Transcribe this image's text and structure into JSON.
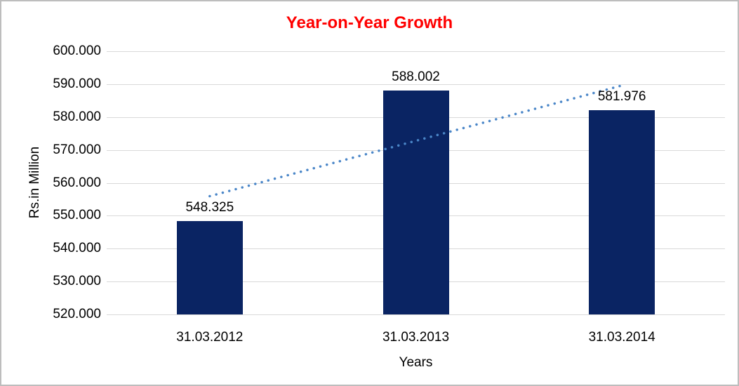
{
  "chart_data": {
    "type": "bar",
    "title": "Year-on-Year Growth",
    "title_color": "#FF0000",
    "xlabel": "Years",
    "ylabel": "Rs.in Million",
    "categories": [
      "31.03.2012",
      "31.03.2013",
      "31.03.2014"
    ],
    "values": [
      548.325,
      588.002,
      581.976
    ],
    "data_labels": [
      "548.325",
      "588.002",
      "581.976"
    ],
    "ylim": [
      520,
      600
    ],
    "ytick_step": 10,
    "ytick_labels": [
      "520.000",
      "530.000",
      "540.000",
      "550.000",
      "560.000",
      "570.000",
      "580.000",
      "590.000",
      "600.000"
    ],
    "grid": "horizontal",
    "gridline_color": "#D9D9D9",
    "bar_color": "#0A2463",
    "legend": "none",
    "trendline": {
      "type": "linear",
      "style": "dotted",
      "color": "#4A86C8"
    }
  }
}
